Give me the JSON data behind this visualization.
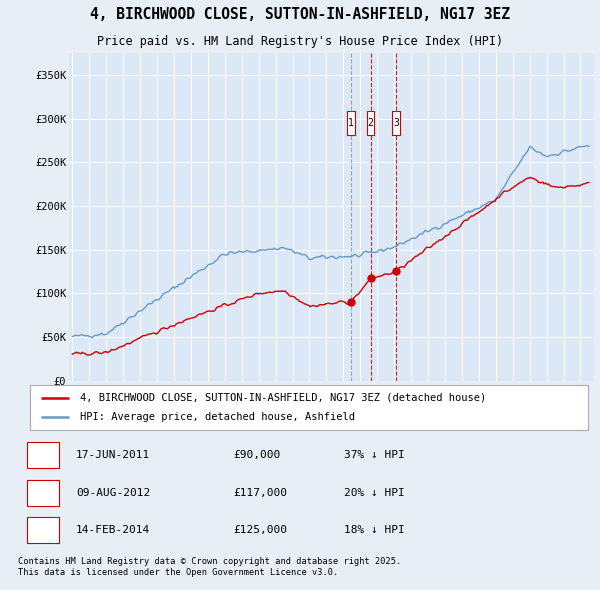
{
  "title": "4, BIRCHWOOD CLOSE, SUTTON-IN-ASHFIELD, NG17 3EZ",
  "subtitle": "Price paid vs. HM Land Registry's House Price Index (HPI)",
  "background_color": "#e8eef5",
  "plot_bg_color": "#dce8f5",
  "grid_color": "#ffffff",
  "red_line_color": "#cc0000",
  "blue_line_color": "#6699cc",
  "legend1": "4, BIRCHWOOD CLOSE, SUTTON-IN-ASHFIELD, NG17 3EZ (detached house)",
  "legend2": "HPI: Average price, detached house, Ashfield",
  "sale_years": [
    2011.46,
    2012.61,
    2014.12
  ],
  "sale_prices": [
    90000,
    117000,
    125000
  ],
  "transactions": [
    {
      "num": 1,
      "date": "17-JUN-2011",
      "price": "£90,000",
      "pct": "37% ↓ HPI",
      "year": 2011.46
    },
    {
      "num": 2,
      "date": "09-AUG-2012",
      "price": "£117,000",
      "pct": "20% ↓ HPI",
      "year": 2012.61
    },
    {
      "num": 3,
      "date": "14-FEB-2014",
      "price": "£125,000",
      "pct": "18% ↓ HPI",
      "year": 2014.12
    }
  ],
  "footer": "Contains HM Land Registry data © Crown copyright and database right 2025.\nThis data is licensed under the Open Government Licence v3.0.",
  "ylim": [
    0,
    375000
  ],
  "xlim_start": 1994.8,
  "xlim_end": 2025.8,
  "yticks": [
    0,
    50000,
    100000,
    150000,
    200000,
    250000,
    300000,
    350000
  ],
  "ytick_labels": [
    "£0",
    "£50K",
    "£100K",
    "£150K",
    "£200K",
    "£250K",
    "£300K",
    "£350K"
  ]
}
